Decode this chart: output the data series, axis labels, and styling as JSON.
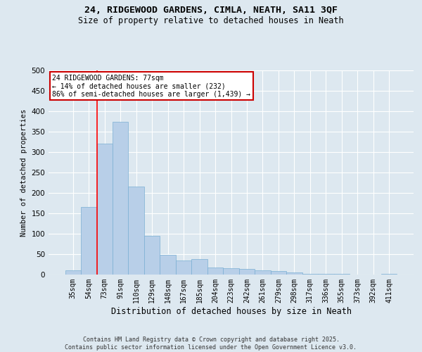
{
  "title_line1": "24, RIDGEWOOD GARDENS, CIMLA, NEATH, SA11 3QF",
  "title_line2": "Size of property relative to detached houses in Neath",
  "xlabel": "Distribution of detached houses by size in Neath",
  "ylabel": "Number of detached properties",
  "categories": [
    "35sqm",
    "54sqm",
    "73sqm",
    "91sqm",
    "110sqm",
    "129sqm",
    "148sqm",
    "167sqm",
    "185sqm",
    "204sqm",
    "223sqm",
    "242sqm",
    "261sqm",
    "279sqm",
    "298sqm",
    "317sqm",
    "336sqm",
    "355sqm",
    "373sqm",
    "392sqm",
    "411sqm"
  ],
  "values": [
    10,
    165,
    320,
    375,
    215,
    95,
    48,
    35,
    38,
    18,
    15,
    14,
    11,
    8,
    5,
    1,
    1,
    1,
    0,
    0,
    1
  ],
  "bar_color": "#b8cfe8",
  "bar_edgecolor": "#7aafd4",
  "red_line_index": 2,
  "annotation_text": "24 RIDGEWOOD GARDENS: 77sqm\n← 14% of detached houses are smaller (232)\n86% of semi-detached houses are larger (1,439) →",
  "annotation_box_color": "#ffffff",
  "annotation_box_edgecolor": "#cc0000",
  "background_color": "#dde8f0",
  "grid_color": "#ffffff",
  "ylim": [
    0,
    500
  ],
  "yticks": [
    0,
    50,
    100,
    150,
    200,
    250,
    300,
    350,
    400,
    450,
    500
  ],
  "footer_line1": "Contains HM Land Registry data © Crown copyright and database right 2025.",
  "footer_line2": "Contains public sector information licensed under the Open Government Licence v3.0."
}
